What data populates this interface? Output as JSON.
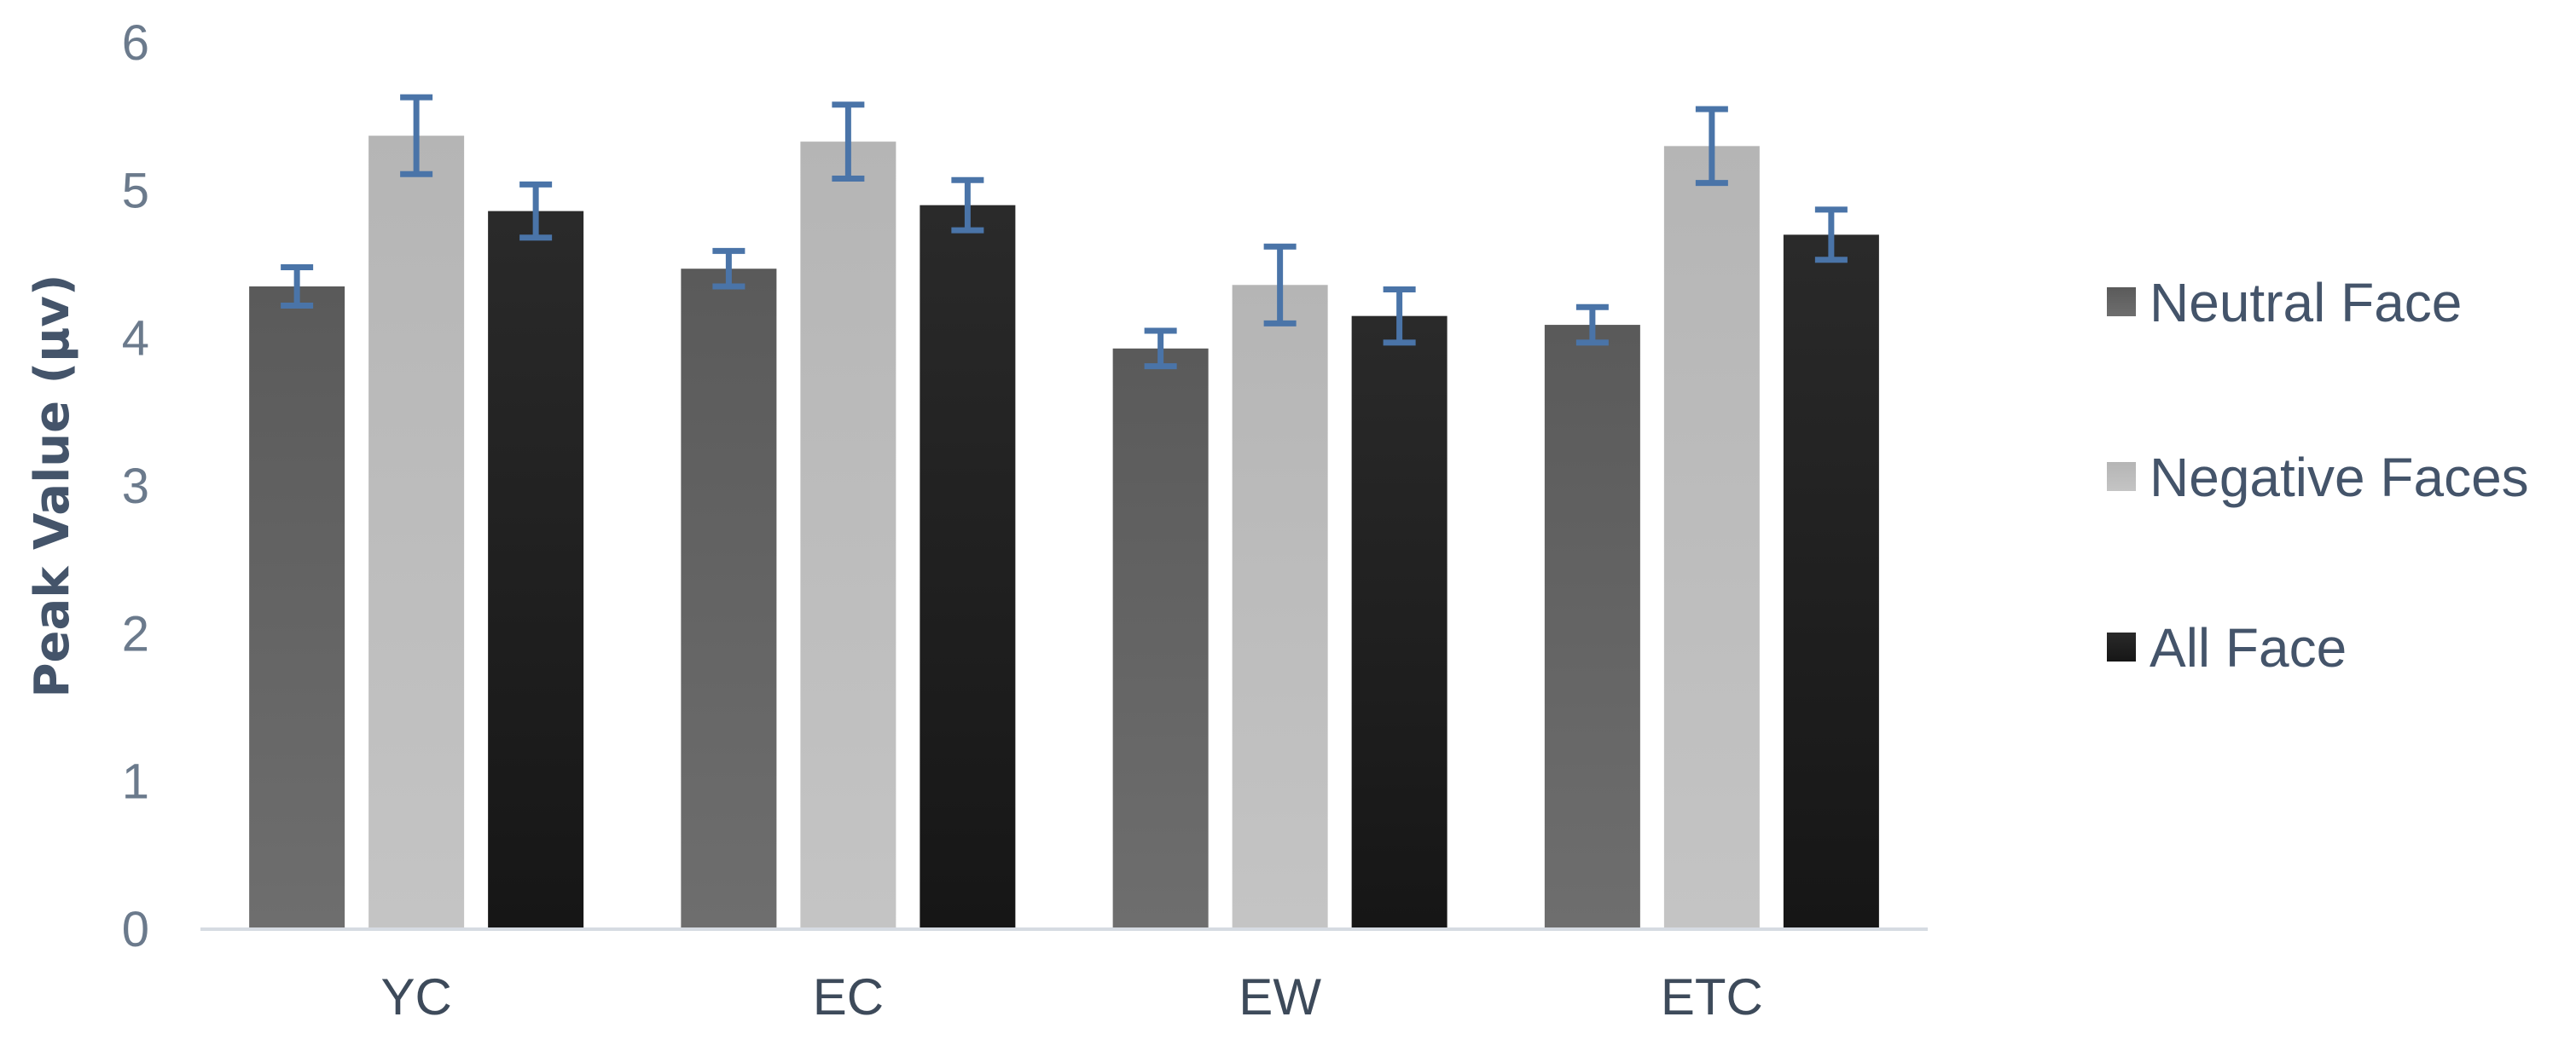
{
  "chart_data": {
    "type": "bar",
    "categories": [
      "YC",
      "EC",
      "EW",
      "ETC"
    ],
    "series": [
      {
        "name": "Neutral Face",
        "values": [
          4.35,
          4.47,
          3.93,
          4.09
        ],
        "errors": [
          0.13,
          0.12,
          0.12,
          0.12
        ],
        "color": "#555555"
      },
      {
        "name": "Negative Faces",
        "values": [
          5.37,
          5.33,
          4.36,
          5.3
        ],
        "errors": [
          0.26,
          0.25,
          0.26,
          0.25
        ],
        "color": "#b8b8b8"
      },
      {
        "name": "All Face",
        "values": [
          4.86,
          4.9,
          4.15,
          4.7
        ],
        "errors": [
          0.18,
          0.17,
          0.18,
          0.17
        ],
        "color": "#1c1c1c"
      }
    ],
    "ylabel": "Peak Value (μv)",
    "ylim": [
      0,
      6
    ],
    "yticks": [
      "0",
      "1",
      "2",
      "3",
      "4",
      "5",
      "6"
    ],
    "grid": false,
    "legend_position": "right"
  }
}
